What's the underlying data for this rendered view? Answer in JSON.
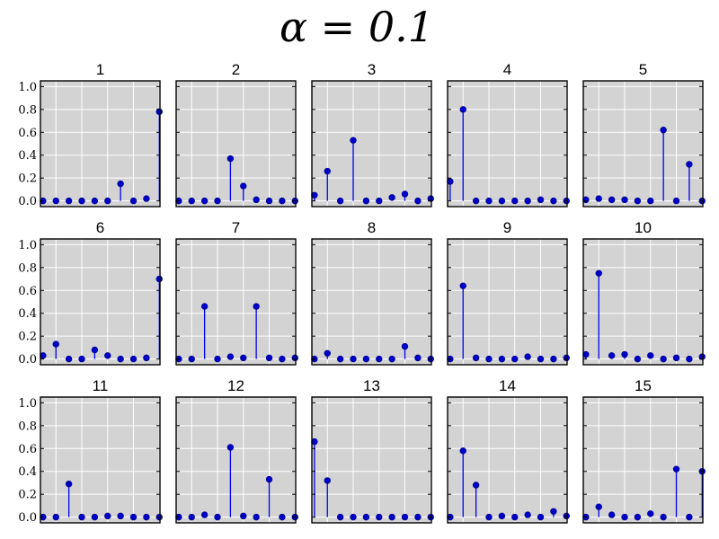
{
  "figure": {
    "suptitle": "α = 0.1"
  },
  "chart_data": [
    {
      "type": "stem",
      "title": "1",
      "ylim": [
        0,
        1.0
      ],
      "yticks": [
        "0.0",
        "0.2",
        "0.4",
        "0.6",
        "0.8",
        "1.0"
      ],
      "x": [
        1,
        2,
        3,
        4,
        5,
        6,
        7,
        8,
        9,
        10
      ],
      "values": [
        0.0,
        0.0,
        0.0,
        0.0,
        0.0,
        0.0,
        0.15,
        0.0,
        0.02,
        0.78
      ],
      "grid": true
    },
    {
      "type": "stem",
      "title": "2",
      "ylim": [
        0,
        1.0
      ],
      "x": [
        1,
        2,
        3,
        4,
        5,
        6,
        7,
        8,
        9,
        10
      ],
      "values": [
        0.0,
        0.0,
        0.0,
        0.0,
        0.37,
        0.13,
        0.01,
        0.0,
        0.0,
        0.0
      ],
      "grid": true
    },
    {
      "type": "stem",
      "title": "3",
      "ylim": [
        0,
        1.0
      ],
      "x": [
        1,
        2,
        3,
        4,
        5,
        6,
        7,
        8,
        9,
        10
      ],
      "values": [
        0.05,
        0.26,
        0.0,
        0.53,
        0.0,
        0.0,
        0.03,
        0.06,
        0.0,
        0.02
      ],
      "grid": true
    },
    {
      "type": "stem",
      "title": "4",
      "ylim": [
        0,
        1.0
      ],
      "x": [
        1,
        2,
        3,
        4,
        5,
        6,
        7,
        8,
        9,
        10
      ],
      "values": [
        0.17,
        0.8,
        0.0,
        0.0,
        0.0,
        0.0,
        0.0,
        0.01,
        0.0,
        0.0
      ],
      "grid": true
    },
    {
      "type": "stem",
      "title": "5",
      "ylim": [
        0,
        1.0
      ],
      "x": [
        1,
        2,
        3,
        4,
        5,
        6,
        7,
        8,
        9,
        10
      ],
      "values": [
        0.01,
        0.02,
        0.01,
        0.01,
        0.0,
        0.0,
        0.62,
        0.0,
        0.32,
        0.0
      ],
      "grid": true
    },
    {
      "type": "stem",
      "title": "6",
      "ylim": [
        0,
        1.0
      ],
      "yticks": [
        "0.0",
        "0.2",
        "0.4",
        "0.6",
        "0.8",
        "1.0"
      ],
      "x": [
        1,
        2,
        3,
        4,
        5,
        6,
        7,
        8,
        9,
        10
      ],
      "values": [
        0.03,
        0.13,
        0.0,
        0.0,
        0.08,
        0.03,
        0.0,
        0.0,
        0.01,
        0.7
      ],
      "grid": true
    },
    {
      "type": "stem",
      "title": "7",
      "ylim": [
        0,
        1.0
      ],
      "x": [
        1,
        2,
        3,
        4,
        5,
        6,
        7,
        8,
        9,
        10
      ],
      "values": [
        0.0,
        0.0,
        0.46,
        0.0,
        0.02,
        0.01,
        0.46,
        0.01,
        0.0,
        0.01
      ],
      "grid": true
    },
    {
      "type": "stem",
      "title": "8",
      "ylim": [
        0,
        1.0
      ],
      "x": [
        1,
        2,
        3,
        4,
        5,
        6,
        7,
        8,
        9,
        10
      ],
      "values": [
        0.0,
        0.05,
        0.0,
        0.0,
        0.0,
        0.0,
        0.0,
        0.11,
        0.01,
        0.0
      ],
      "grid": true
    },
    {
      "type": "stem",
      "title": "9",
      "ylim": [
        0,
        1.0
      ],
      "x": [
        1,
        2,
        3,
        4,
        5,
        6,
        7,
        8,
        9,
        10
      ],
      "values": [
        0.0,
        0.64,
        0.01,
        0.0,
        0.0,
        0.0,
        0.02,
        0.0,
        0.0,
        0.01
      ],
      "grid": true
    },
    {
      "type": "stem",
      "title": "10",
      "ylim": [
        0,
        1.0
      ],
      "x": [
        1,
        2,
        3,
        4,
        5,
        6,
        7,
        8,
        9,
        10
      ],
      "values": [
        0.04,
        0.75,
        0.03,
        0.04,
        0.0,
        0.03,
        0.0,
        0.01,
        0.0,
        0.02
      ],
      "grid": true
    },
    {
      "type": "stem",
      "title": "11",
      "ylim": [
        0,
        1.0
      ],
      "yticks": [
        "0.0",
        "0.2",
        "0.4",
        "0.6",
        "0.8",
        "1.0"
      ],
      "x": [
        1,
        2,
        3,
        4,
        5,
        6,
        7,
        8,
        9,
        10
      ],
      "values": [
        0.0,
        0.0,
        0.29,
        0.0,
        0.0,
        0.01,
        0.01,
        0.0,
        0.0,
        0.0
      ],
      "grid": true
    },
    {
      "type": "stem",
      "title": "12",
      "ylim": [
        0,
        1.0
      ],
      "x": [
        1,
        2,
        3,
        4,
        5,
        6,
        7,
        8,
        9,
        10
      ],
      "values": [
        0.0,
        0.0,
        0.02,
        0.0,
        0.61,
        0.01,
        0.0,
        0.33,
        0.0,
        0.0
      ],
      "grid": true
    },
    {
      "type": "stem",
      "title": "13",
      "ylim": [
        0,
        1.0
      ],
      "x": [
        1,
        2,
        3,
        4,
        5,
        6,
        7,
        8,
        9,
        10
      ],
      "values": [
        0.66,
        0.32,
        0.0,
        0.0,
        0.0,
        0.0,
        0.0,
        0.0,
        0.0,
        0.0
      ],
      "grid": true
    },
    {
      "type": "stem",
      "title": "14",
      "ylim": [
        0,
        1.0
      ],
      "x": [
        1,
        2,
        3,
        4,
        5,
        6,
        7,
        8,
        9,
        10
      ],
      "values": [
        0.0,
        0.58,
        0.28,
        0.0,
        0.01,
        0.0,
        0.02,
        0.0,
        0.05,
        0.01
      ],
      "grid": true
    },
    {
      "type": "stem",
      "title": "15",
      "ylim": [
        0,
        1.0
      ],
      "x": [
        1,
        2,
        3,
        4,
        5,
        6,
        7,
        8,
        9,
        10
      ],
      "values": [
        0.0,
        0.09,
        0.02,
        0.0,
        0.0,
        0.03,
        0.0,
        0.42,
        0.0,
        0.4
      ],
      "grid": true
    }
  ],
  "colors": {
    "background": "#d3d3d3",
    "grid": "#ffffff",
    "stem": "#0000ee",
    "marker": "#0000cc"
  }
}
